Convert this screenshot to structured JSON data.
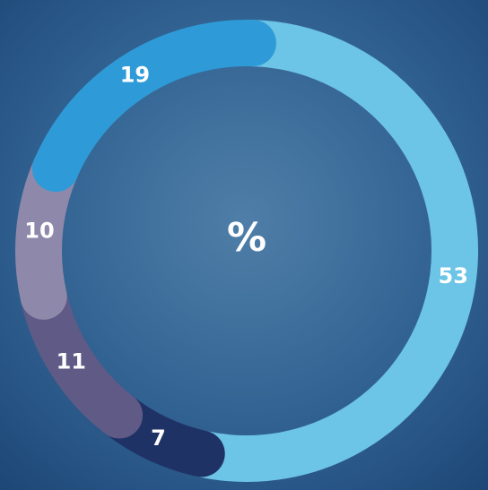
{
  "chart_data": {
    "type": "donut",
    "center_label": "%",
    "categories": [
      null,
      null,
      null,
      null,
      null
    ],
    "values": [
      53,
      7,
      11,
      10,
      19
    ],
    "colors": [
      "#6cc4e6",
      "#1f3266",
      "#5f5a86",
      "#8e88aa",
      "#2e9bd8"
    ]
  }
}
